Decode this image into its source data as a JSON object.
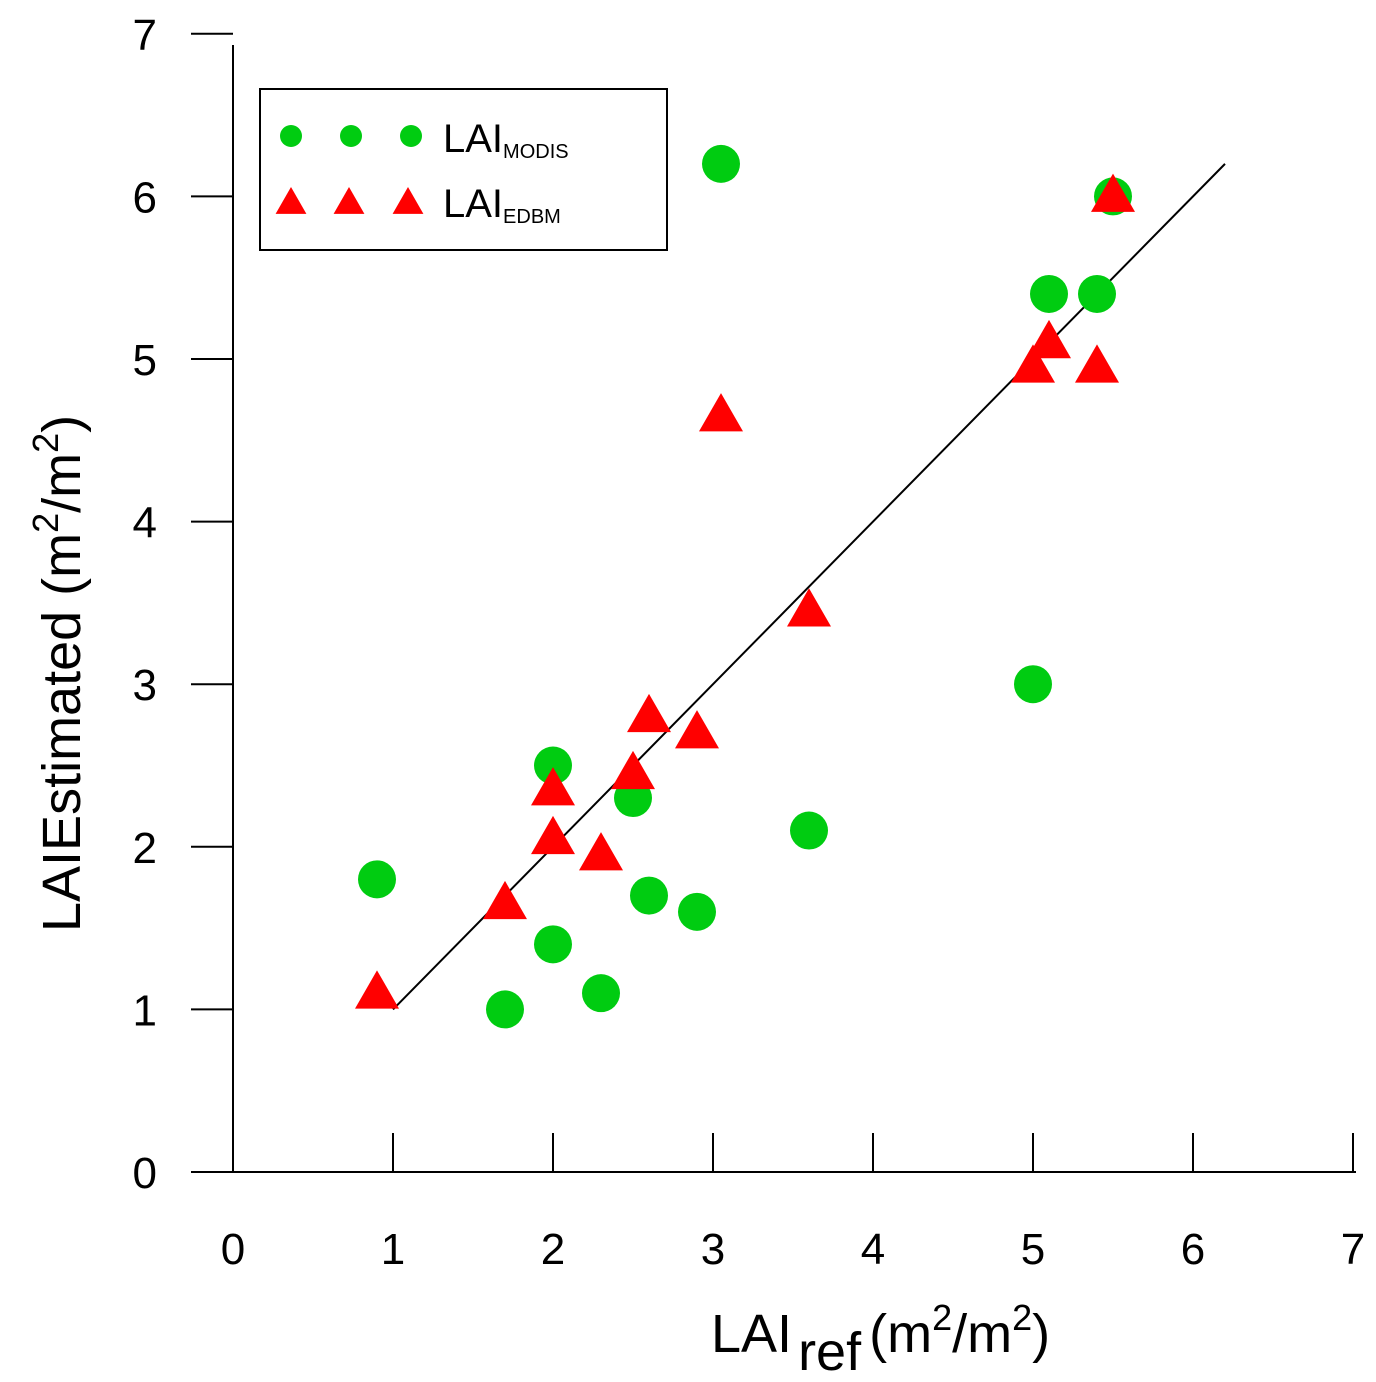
{
  "chart_data": {
    "type": "scatter",
    "title": "",
    "x_axis": {
      "label_main": "LAI",
      "label_sub": "ref",
      "label_units_prefix": "(m",
      "label_units_sup1": "2",
      "label_units_mid": "/m",
      "label_units_sup2": "2",
      "label_units_suffix": ")",
      "range": [
        0,
        7
      ],
      "ticks": [
        "0",
        "1",
        "2",
        "3",
        "4",
        "5",
        "6",
        "7"
      ]
    },
    "y_axis": {
      "label_main": "LAIEstimated",
      "label_units_prefix": " (m",
      "label_units_sup1": "2",
      "label_units_mid": "/m",
      "label_units_sup2": "2",
      "label_units_suffix": ")",
      "range": [
        0,
        7
      ],
      "ticks": [
        "0",
        "1",
        "2",
        "3",
        "4",
        "5",
        "6",
        "7"
      ]
    },
    "series": [
      {
        "name": "LAI",
        "subscript": "MODIS",
        "marker": "circle",
        "color": "#00cc11",
        "points": [
          [
            0.9,
            1.8
          ],
          [
            1.7,
            1.0
          ],
          [
            2.0,
            2.5
          ],
          [
            2.0,
            1.4
          ],
          [
            2.3,
            1.1
          ],
          [
            2.5,
            2.3
          ],
          [
            2.6,
            1.7
          ],
          [
            2.9,
            1.6
          ],
          [
            3.05,
            6.2
          ],
          [
            3.6,
            2.1
          ],
          [
            5.0,
            3.0
          ],
          [
            5.1,
            5.4
          ],
          [
            5.4,
            5.4
          ],
          [
            5.5,
            6.0
          ]
        ]
      },
      {
        "name": "LAI",
        "subscript": "EDBM",
        "marker": "triangle",
        "color": "#ff0000",
        "points": [
          [
            0.9,
            1.1
          ],
          [
            1.7,
            1.65
          ],
          [
            2.0,
            2.35
          ],
          [
            2.0,
            2.05
          ],
          [
            2.3,
            1.95
          ],
          [
            2.5,
            2.45
          ],
          [
            2.6,
            2.8
          ],
          [
            2.9,
            2.7
          ],
          [
            3.05,
            4.65
          ],
          [
            3.6,
            3.45
          ],
          [
            5.0,
            4.95
          ],
          [
            5.1,
            5.1
          ],
          [
            5.4,
            4.95
          ],
          [
            5.5,
            6.0
          ]
        ]
      }
    ],
    "reference_line": {
      "x": [
        1.0,
        6.2
      ],
      "y": [
        1.0,
        6.2
      ],
      "color": "#000000"
    },
    "legend_position": "top-left",
    "grid": false
  }
}
